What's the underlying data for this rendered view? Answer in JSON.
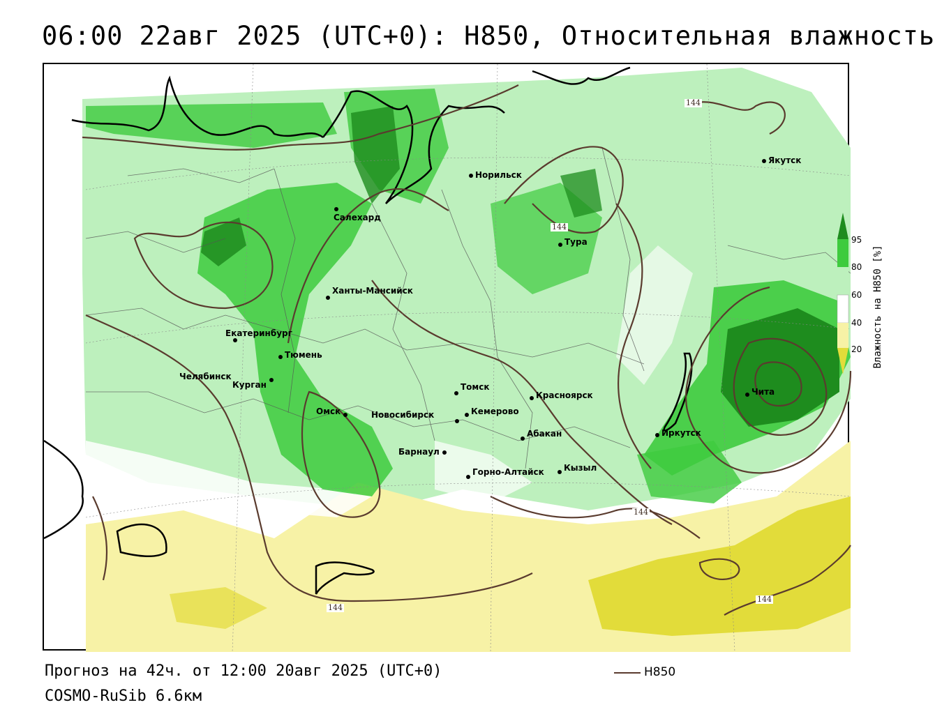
{
  "title": "06:00 22авг 2025 (UTC+0): H850, Относительная влажность",
  "footer": {
    "forecast": "Прогноз на 42ч. от 12:00 20авг 2025 (UTC+0)",
    "model": "COSMO-RuSib 6.6км",
    "contour_legend": "H850"
  },
  "legend": {
    "title": "Влажность на H850 [%]",
    "ticks": [
      "95",
      "80",
      "60",
      "40",
      "20"
    ]
  },
  "colors": {
    "rh_95": "#1e8c1e",
    "rh_80": "#3ecb3e",
    "rh_60": "#bdf0bd",
    "rh_40": "#ffffff",
    "rh_20": "#f7f2a6",
    "rh_dry": "#e2dc3a",
    "contour": "#5a3b2e"
  },
  "contour_labels": [
    "144",
    "144",
    "144",
    "144",
    "144"
  ],
  "cities": [
    {
      "name": "Якутск"
    },
    {
      "name": "Норильск"
    },
    {
      "name": "Салехард"
    },
    {
      "name": "Тура"
    },
    {
      "name": "Ханты-Мансийск"
    },
    {
      "name": "Екатеринбург"
    },
    {
      "name": "Тюмень"
    },
    {
      "name": "Челябинск"
    },
    {
      "name": "Курган"
    },
    {
      "name": "Омск"
    },
    {
      "name": "Томск"
    },
    {
      "name": "Красноярск"
    },
    {
      "name": "Новосибирск"
    },
    {
      "name": "Кемерово"
    },
    {
      "name": "Абакан"
    },
    {
      "name": "Барнаул"
    },
    {
      "name": "Горно-Алтайск"
    },
    {
      "name": "Кызыл"
    },
    {
      "name": "Иркутск"
    },
    {
      "name": "Чита"
    }
  ]
}
